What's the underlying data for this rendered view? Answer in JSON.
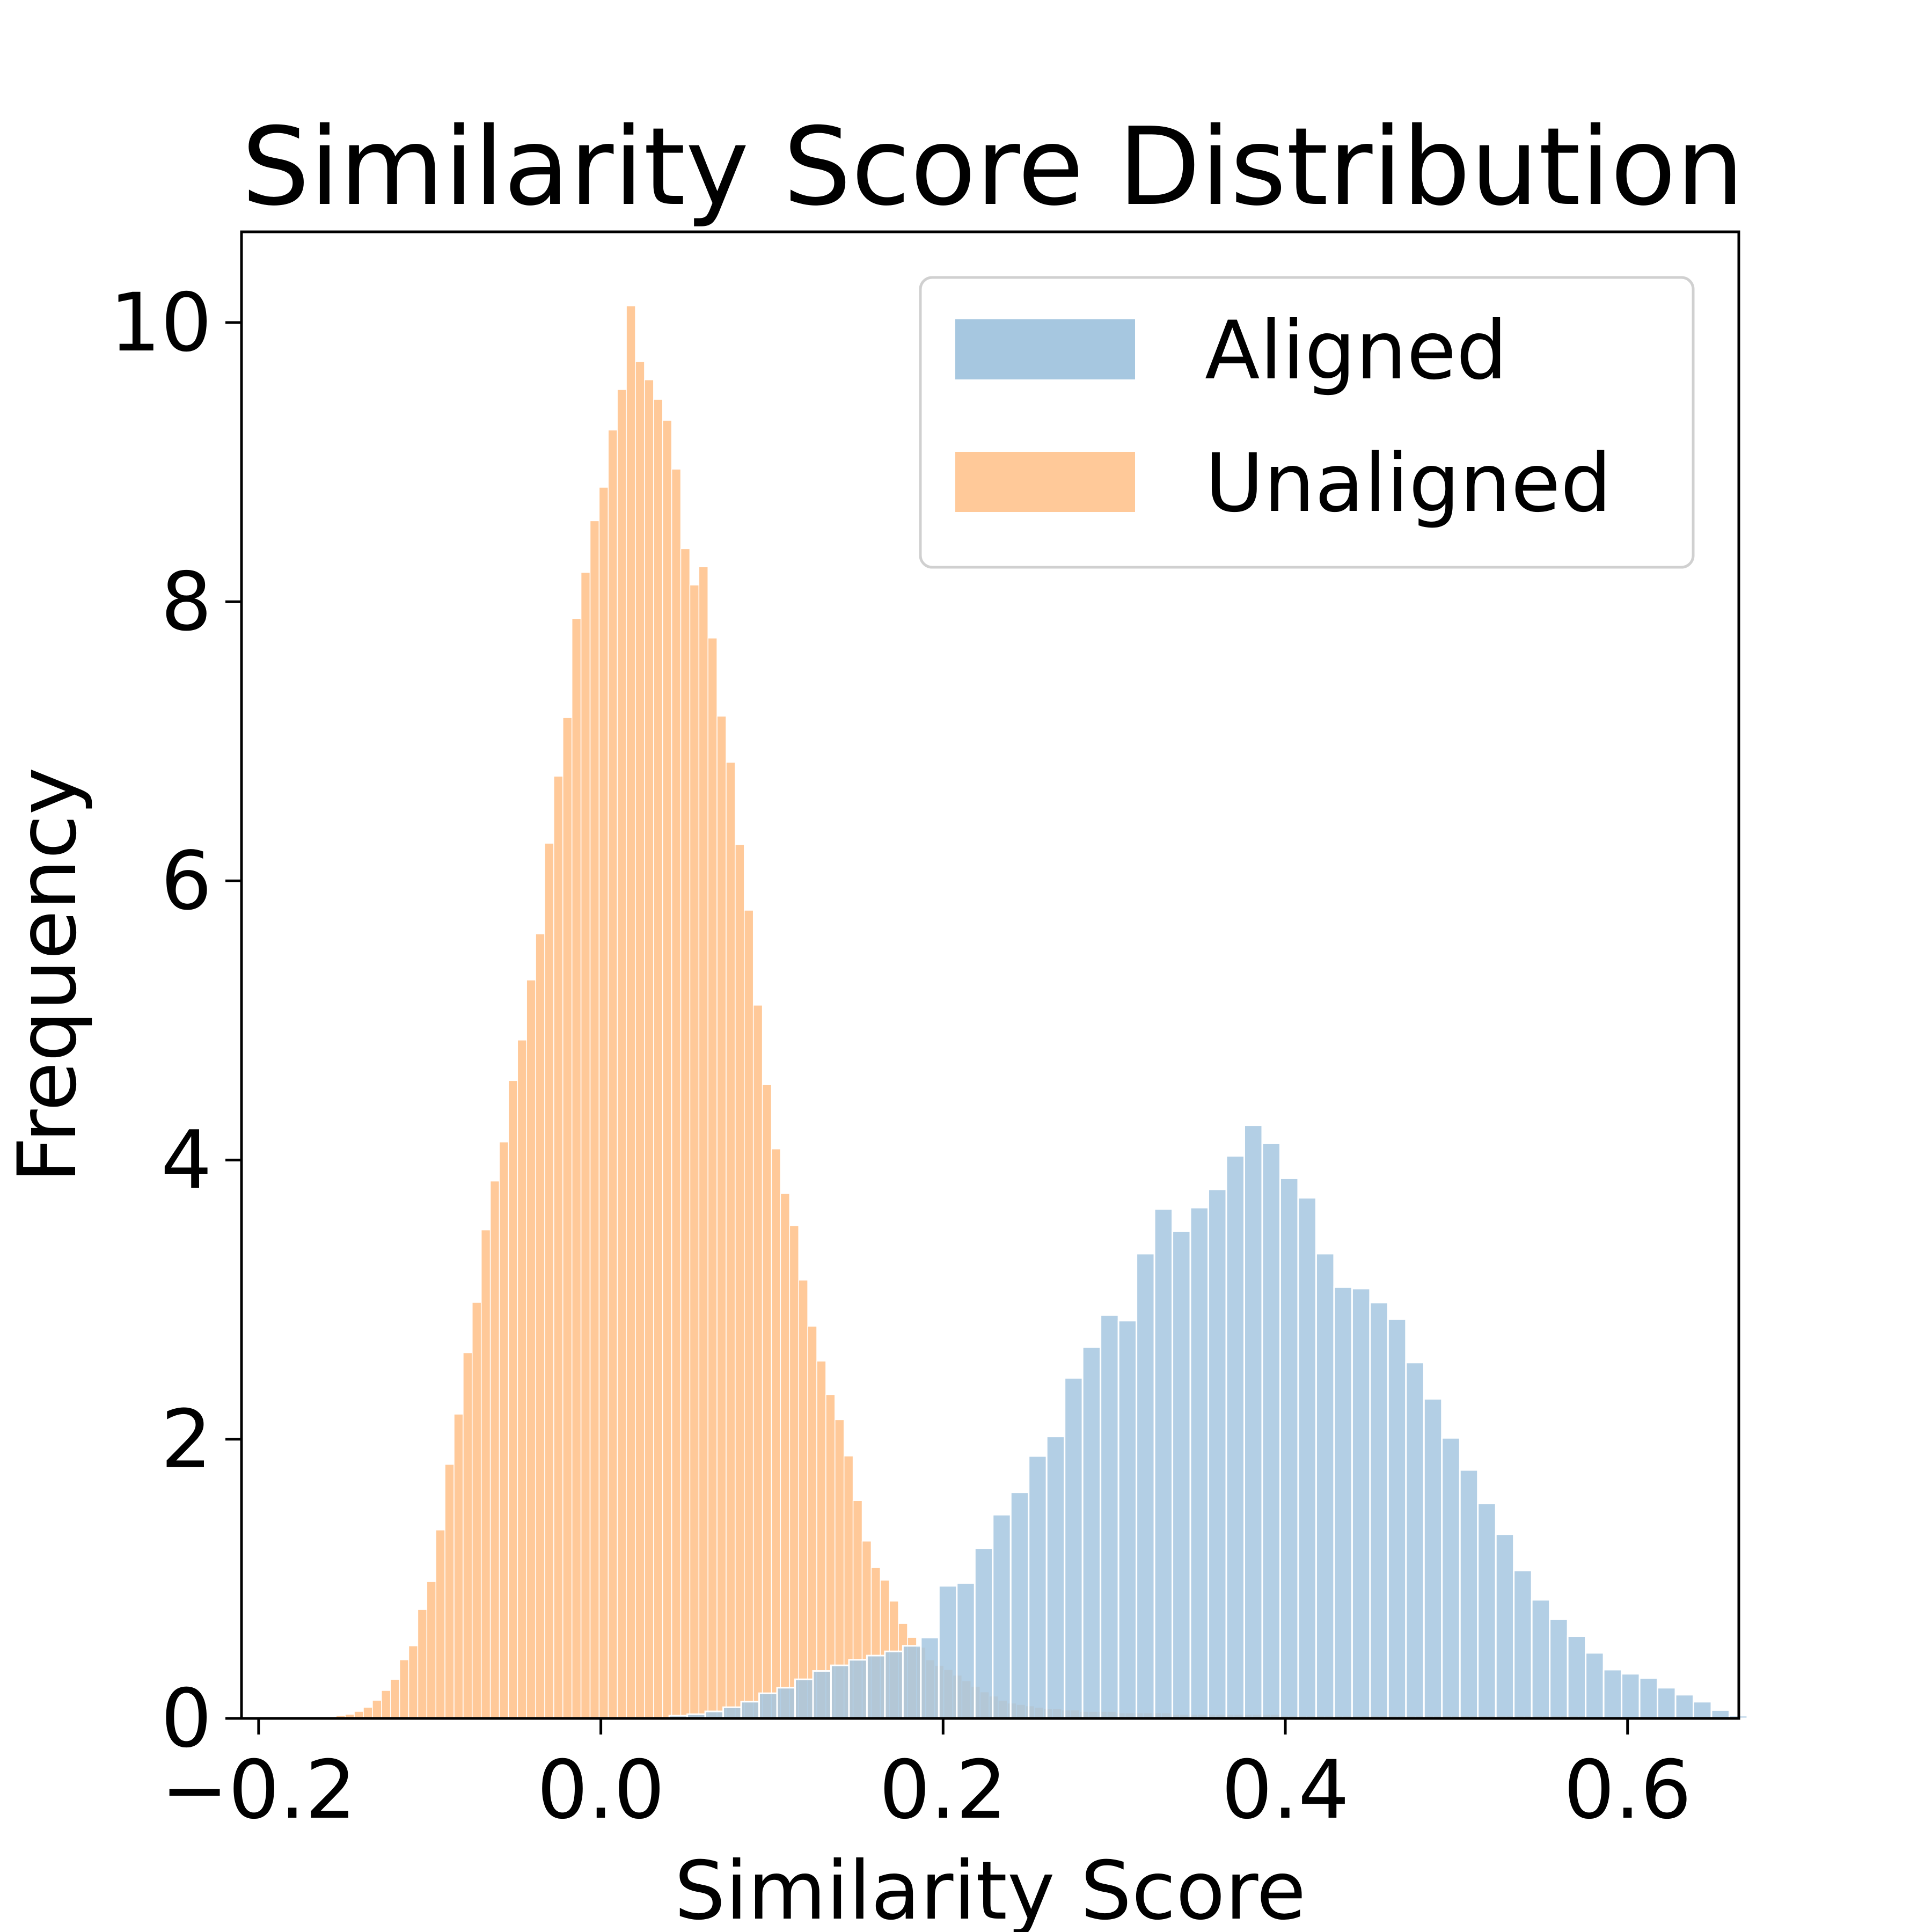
{
  "chart_data": {
    "type": "bar",
    "subtype": "histogram",
    "title": "Similarity Score Distribution",
    "xlabel": "Similarity Score",
    "ylabel": "Frequency",
    "xlim": [
      -0.21,
      0.665
    ],
    "ylim": [
      0,
      10.65
    ],
    "xticks": [
      -0.2,
      0.0,
      0.2,
      0.4,
      0.6
    ],
    "xtick_labels": [
      "−0.2",
      "0.0",
      "0.2",
      "0.4",
      "0.6"
    ],
    "yticks": [
      0,
      2,
      4,
      6,
      8,
      10
    ],
    "ytick_labels": [
      "0",
      "2",
      "4",
      "6",
      "8",
      "10"
    ],
    "grid": false,
    "legend": {
      "position": "top-right",
      "entries": [
        "Aligned",
        "Unaligned"
      ]
    },
    "series": [
      {
        "name": "Aligned",
        "color": "#a6c7e0",
        "bin_start": 0.04,
        "bin_width": 0.0105,
        "values": [
          0.02,
          0.03,
          0.05,
          0.08,
          0.12,
          0.18,
          0.22,
          0.28,
          0.34,
          0.38,
          0.42,
          0.45,
          0.48,
          0.52,
          0.58,
          0.95,
          0.97,
          1.22,
          1.46,
          1.62,
          1.88,
          2.02,
          2.44,
          2.66,
          2.89,
          2.85,
          3.33,
          3.65,
          3.49,
          3.66,
          3.79,
          4.03,
          4.25,
          4.12,
          3.87,
          3.73,
          3.33,
          3.09,
          3.08,
          2.98,
          2.86,
          2.55,
          2.29,
          2.01,
          1.78,
          1.54,
          1.32,
          1.06,
          0.85,
          0.71,
          0.59,
          0.47,
          0.35,
          0.32,
          0.29,
          0.22,
          0.17,
          0.12,
          0.06,
          0.02
        ]
      },
      {
        "name": "Unaligned",
        "color": "#ffc999",
        "bin_start": -0.16,
        "bin_width": 0.0053,
        "values": [
          0.01,
          0.02,
          0.03,
          0.05,
          0.08,
          0.13,
          0.2,
          0.28,
          0.42,
          0.52,
          0.78,
          0.98,
          1.35,
          1.82,
          2.18,
          2.62,
          2.98,
          3.5,
          3.85,
          4.13,
          4.57,
          4.86,
          5.29,
          5.62,
          6.27,
          6.75,
          7.17,
          7.88,
          8.21,
          8.58,
          8.82,
          9.23,
          9.52,
          10.12,
          9.72,
          9.59,
          9.45,
          9.3,
          8.95,
          8.38,
          8.12,
          8.25,
          7.74,
          7.18,
          6.85,
          6.26,
          5.79,
          5.11,
          4.54,
          4.08,
          3.76,
          3.53,
          3.14,
          2.81,
          2.56,
          2.32,
          2.14,
          1.88,
          1.56,
          1.27,
          1.08,
          0.99,
          0.84,
          0.68,
          0.58,
          0.51,
          0.42,
          0.38,
          0.35,
          0.31,
          0.27,
          0.23,
          0.19,
          0.16,
          0.13,
          0.11,
          0.1,
          0.09,
          0.08,
          0.07,
          0.07,
          0.06,
          0.06,
          0.05,
          0.05,
          0.05,
          0.05,
          0.04,
          0.04,
          0.04,
          0.04,
          0.04,
          0.04,
          0.03,
          0.03,
          0.03,
          0.03,
          0.03,
          0.03,
          0.03,
          0.03,
          0.03,
          0.03,
          0.03,
          0.03,
          0.02,
          0.02,
          0.02,
          0.02,
          0.02,
          0.02,
          0.02,
          0.02,
          0.02,
          0.02,
          0.02,
          0.02,
          0.02,
          0.02,
          0.02,
          0.02,
          0.02,
          0.02,
          0.02,
          0.02,
          0.02,
          0.02,
          0.02,
          0.02,
          0.02,
          0.02,
          0.02,
          0.02,
          0.02,
          0.02,
          0.02,
          0.02,
          0.02,
          0.02,
          0.01,
          0.01,
          0.01,
          0.01,
          0.01,
          0.01,
          0.01,
          0.01,
          0.01
        ]
      }
    ]
  }
}
